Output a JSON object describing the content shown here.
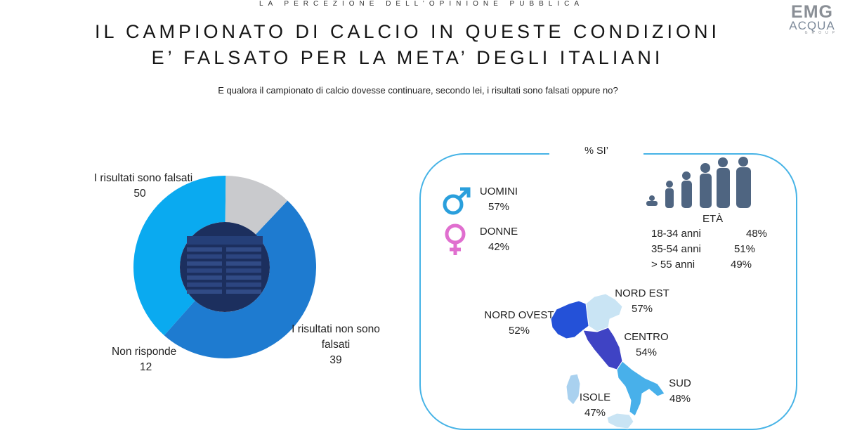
{
  "header": {
    "kicker": "LA PERCEZIONE DELL’OPINIONE PUBBLICA",
    "logo": {
      "line1": "EMG",
      "line2": "ACQUA",
      "line3": "GROUP"
    },
    "title_line1": "IL CAMPIONATO DI CALCIO IN QUESTE CONDIZIONI",
    "title_line2": "E’ FALSATO PER LA META’ DEGLI ITALIANI",
    "question": "E qualora il campionato di calcio dovesse continuare, secondo lei, i risultati sono falsati oppure no?"
  },
  "chart_data": [
    {
      "type": "pie",
      "variant": "donut",
      "slices": [
        {
          "label_lines": [
            "I risultati sono falsati"
          ],
          "value": 50,
          "color": "#1e7bd0"
        },
        {
          "label_lines": [
            "I risultati non sono",
            "falsati"
          ],
          "value": 39,
          "color": "#0aaaf0"
        },
        {
          "label_lines": [
            "Non risponde"
          ],
          "value": 12,
          "color": "#c9cacd"
        }
      ]
    },
    {
      "type": "table",
      "title": "% SI’",
      "gender": [
        {
          "label": "UOMINI",
          "value": "57%",
          "icon": "male-icon",
          "color": "#2a9fdc"
        },
        {
          "label": "DONNE",
          "value": "42%",
          "icon": "female-icon",
          "color": "#e06fcf"
        }
      ],
      "age": {
        "title": "ETÀ",
        "rows": [
          {
            "label": "18-34 anni",
            "value": "48%"
          },
          {
            "label": "35-54 anni",
            "value": "51%"
          },
          {
            "label": "> 55 anni",
            "value": "49%"
          }
        ]
      },
      "regions": [
        {
          "label": "NORD EST",
          "value": "57%",
          "color": "#c9e4f4"
        },
        {
          "label": "NORD OVEST",
          "value": "52%",
          "color": "#2451d8"
        },
        {
          "label": "CENTRO",
          "value": "54%",
          "color": "#3f43c4"
        },
        {
          "label": "SUD",
          "value": "48%",
          "color": "#48b0ea"
        },
        {
          "label": "ISOLE",
          "value": "47%",
          "color": "#a9d1ef"
        }
      ]
    }
  ]
}
